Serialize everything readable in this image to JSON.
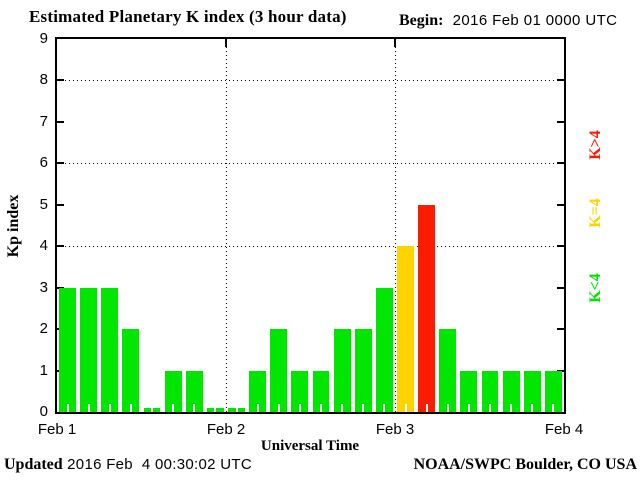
{
  "header": {
    "title": "Estimated Planetary K index (3 hour data)",
    "begin_label": "Begin:",
    "begin_value": "2016 Feb 01 0000 UTC"
  },
  "footer": {
    "updated_label": "Updated",
    "updated_value": "2016 Feb  4 00:30:02 UTC",
    "credit": "NOAA/SWPC Boulder, CO USA"
  },
  "chart_data": {
    "type": "bar",
    "title": "Estimated Planetary K index (3 hour data)",
    "xlabel": "Universal Time",
    "ylabel": "Kp index",
    "ylim": [
      0,
      9
    ],
    "y_ticks": [
      0,
      1,
      2,
      3,
      4,
      5,
      6,
      7,
      8,
      9
    ],
    "gridlines_y": [
      4,
      6,
      8
    ],
    "x_tick_labels": [
      "Feb 1",
      "Feb 2",
      "Feb 3",
      "Feb 4"
    ],
    "bar_interval_hours": 3,
    "x_start": "2016 Feb 01 0000 UTC",
    "values": [
      3,
      3,
      3,
      2,
      0,
      1,
      1,
      0,
      0,
      1,
      2,
      1,
      1,
      2,
      2,
      3,
      4,
      5,
      2,
      1,
      1,
      1,
      1,
      1
    ],
    "color_rules": {
      "below_4": "#00e600",
      "equal_4": "#ffd300",
      "above_4": "#fc1d00"
    },
    "legend": [
      {
        "label": "K>4",
        "color": "#fc1d00",
        "center_y": 145
      },
      {
        "label": "K=4",
        "color": "#ffd300",
        "center_y": 213
      },
      {
        "label": "K<4",
        "color": "#00e600",
        "center_y": 288
      }
    ],
    "grid_style": "dotted",
    "legend_position": "right-rotated"
  }
}
